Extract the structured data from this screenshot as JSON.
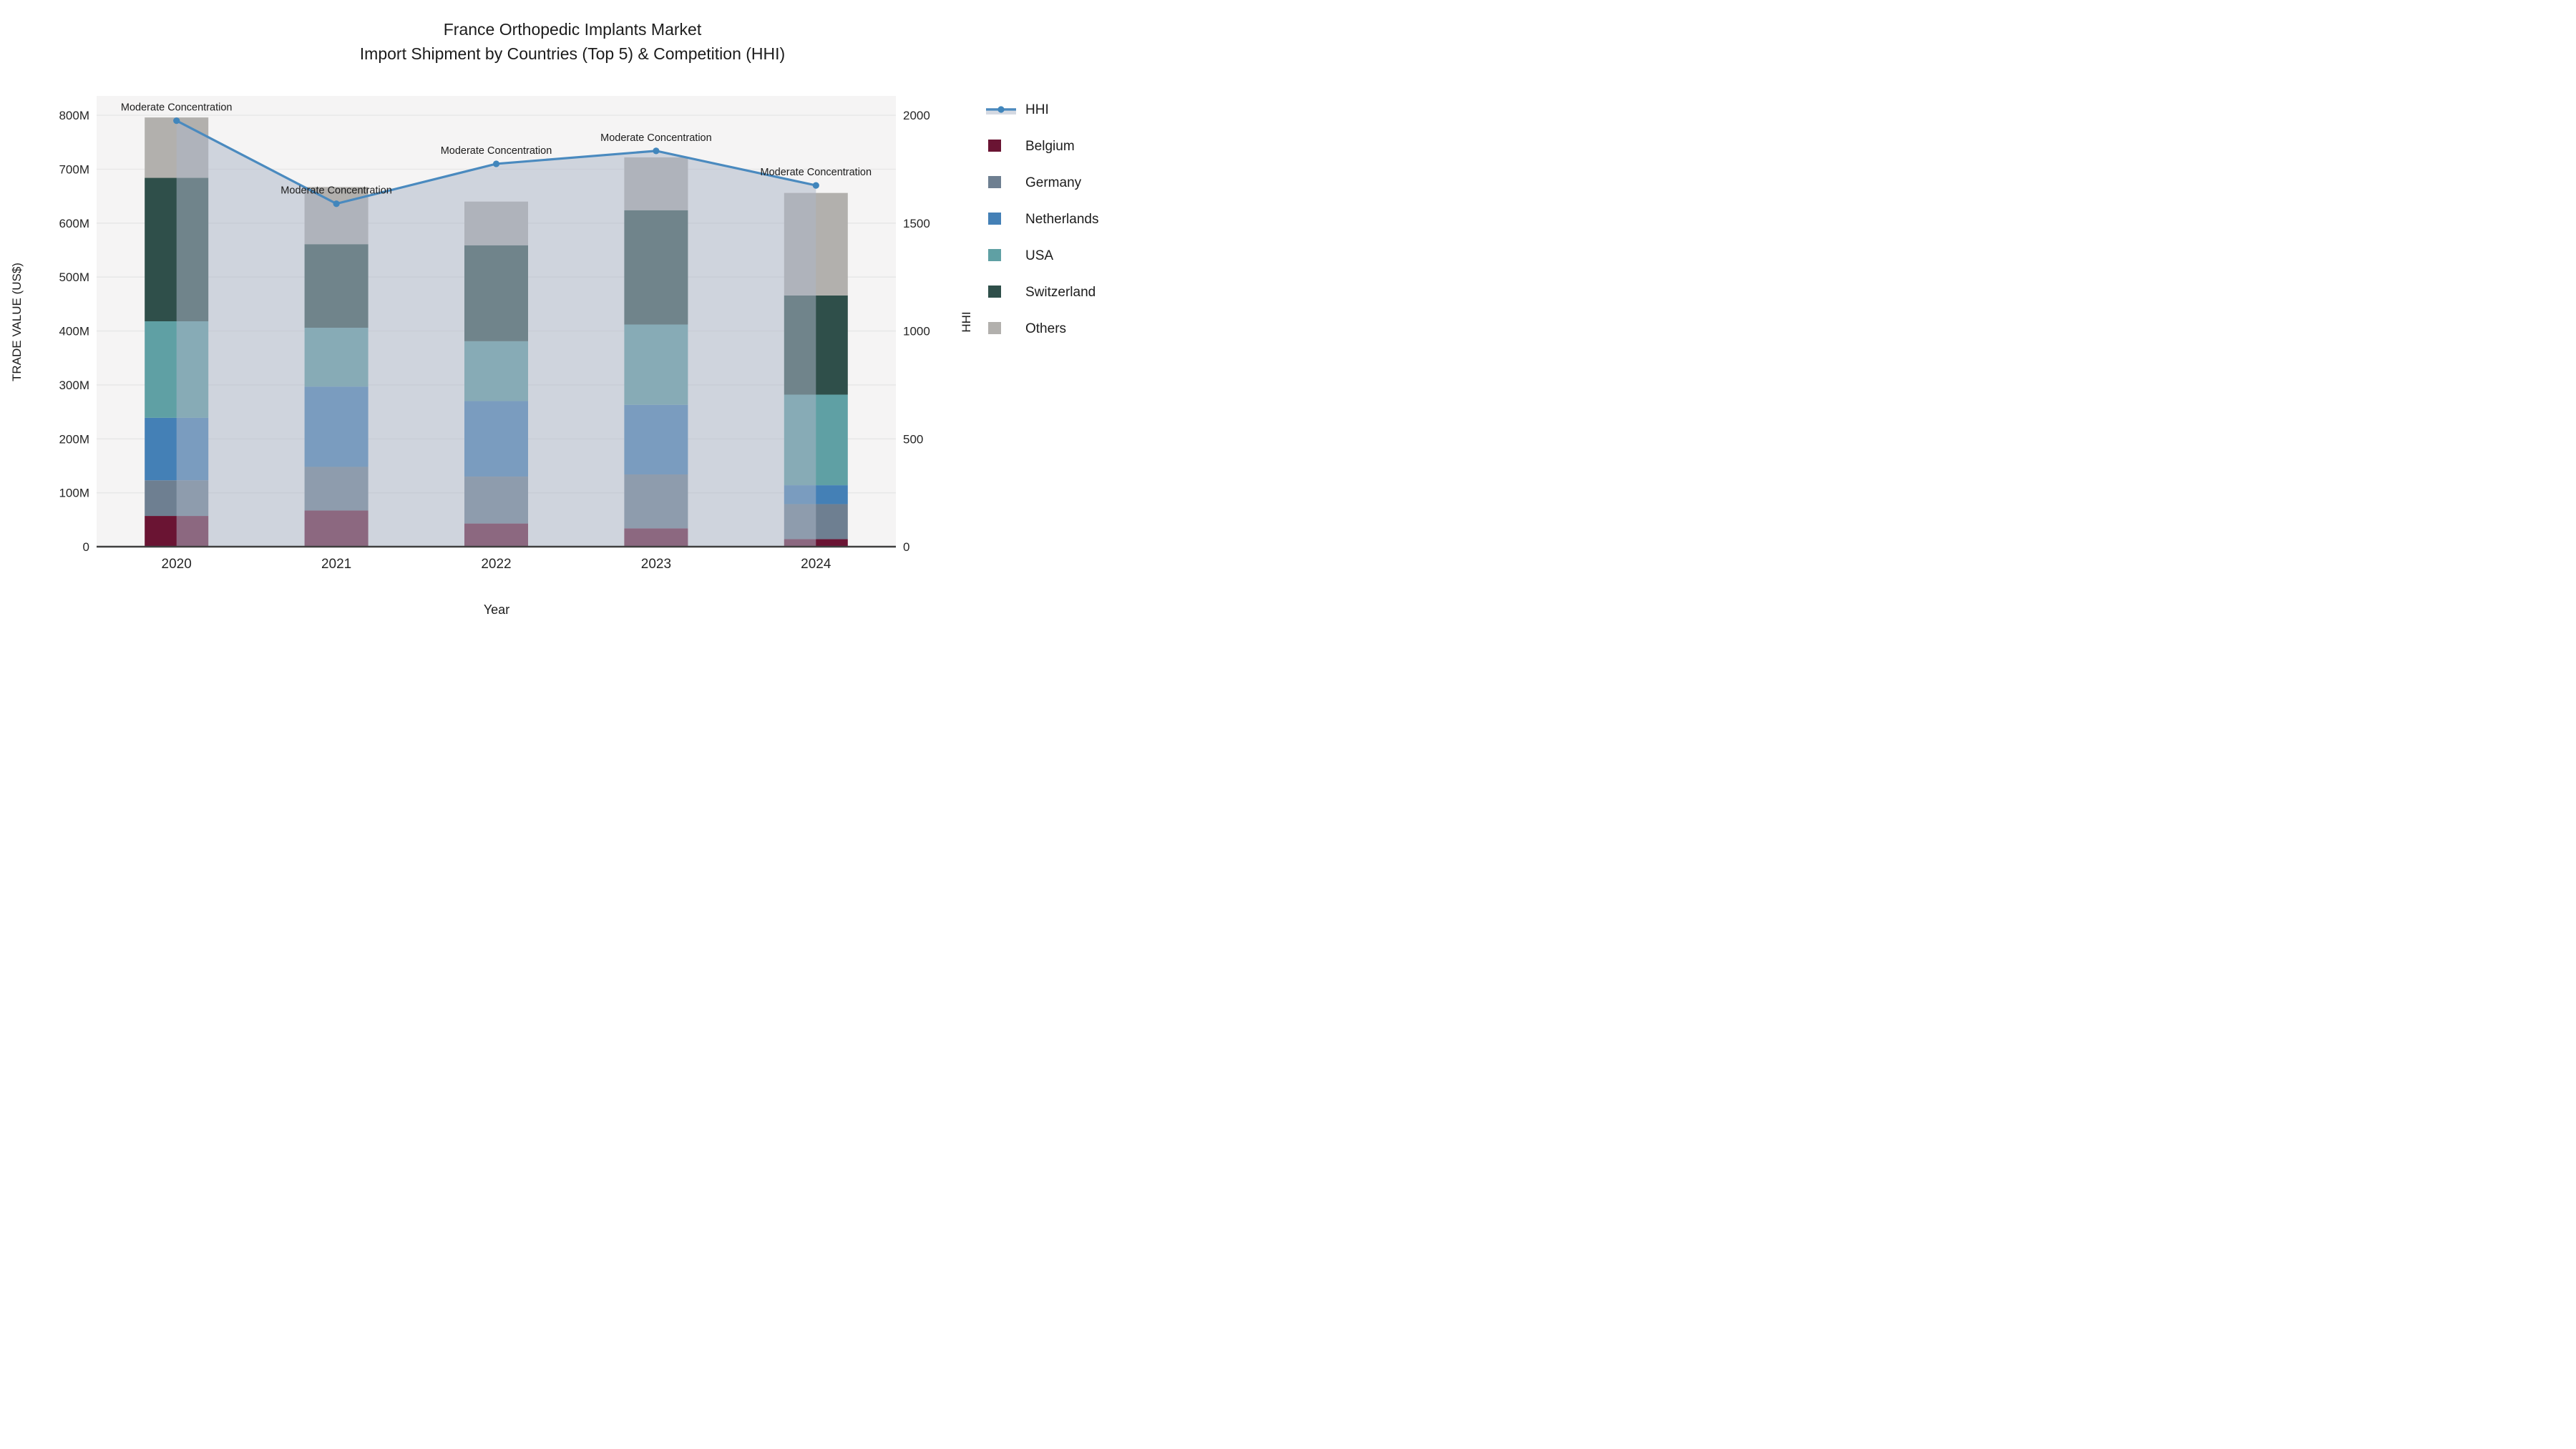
{
  "title": {
    "line1": "France Orthopedic Implants Market",
    "line2": "Import Shipment by Countries (Top 5) & Competition (HHI)"
  },
  "chart_data": {
    "type": "combo: stacked-bar + line (dual axis)",
    "categories": [
      "2020",
      "2021",
      "2022",
      "2023",
      "2024"
    ],
    "xlabel": "Year",
    "ylabel_left": "TRADE VALUE (US$)",
    "ylabel_right": "HHI",
    "y_left_ticks": [
      "0",
      "100M",
      "200M",
      "300M",
      "400M",
      "500M",
      "600M",
      "700M",
      "800M"
    ],
    "y_left_tick_values_m": [
      0,
      100,
      200,
      300,
      400,
      500,
      600,
      700,
      800
    ],
    "y_left_range_m": [
      0,
      836
    ],
    "y_right_ticks": [
      "0",
      "500",
      "1000",
      "1500",
      "2000"
    ],
    "y_right_tick_values": [
      0,
      500,
      1000,
      1500,
      2000
    ],
    "y_right_range": [
      0,
      2090
    ],
    "grid": true,
    "legend_position": "outside-right-top",
    "stack_order_bottom_to_top": [
      "Others",
      "Switzerland",
      "USA",
      "Netherlands",
      "Germany",
      "Belgium"
    ],
    "series": [
      {
        "name": "Belgium",
        "color": "#6a1433",
        "values_musd": [
          57,
          67,
          43,
          34,
          14
        ]
      },
      {
        "name": "Germany",
        "color": "#6e7f91",
        "values_musd": [
          66,
          81,
          87,
          100,
          65
        ]
      },
      {
        "name": "Netherlands",
        "color": "#4480b6",
        "values_musd": [
          116,
          149,
          140,
          129,
          35
        ]
      },
      {
        "name": "USA",
        "color": "#5fa0a4",
        "values_musd": [
          179,
          109,
          111,
          149,
          168
        ]
      },
      {
        "name": "Switzerland",
        "color": "#2f4f4a",
        "values_musd": [
          266,
          155,
          178,
          212,
          184
        ]
      },
      {
        "name": "Others",
        "color": "#b2b0ad",
        "values_musd": [
          112,
          106,
          81,
          98,
          190
        ]
      }
    ],
    "bar_totals_musd": [
      796,
      667,
      640,
      722,
      656
    ],
    "hhi": {
      "name": "HHI",
      "line_color": "#4a8abf",
      "marker_color": "#4186bc",
      "area_fill": "rgba(173,183,199,0.52)",
      "values": [
        1975,
        1590,
        1775,
        1835,
        1675
      ],
      "annotation_text": "Moderate Concentration",
      "annotated_points": [
        0,
        1,
        2,
        3,
        4
      ]
    },
    "legend_entries": [
      "HHI",
      "Belgium",
      "Germany",
      "Netherlands",
      "USA",
      "Switzerland",
      "Others"
    ]
  },
  "style": {
    "plot_bg": "#f5f4f4",
    "grid_color": "#e8e8e8",
    "axis_line_color": "#3f3f3f",
    "text_color": "#1c1c1c",
    "tick_color": "#262626"
  }
}
